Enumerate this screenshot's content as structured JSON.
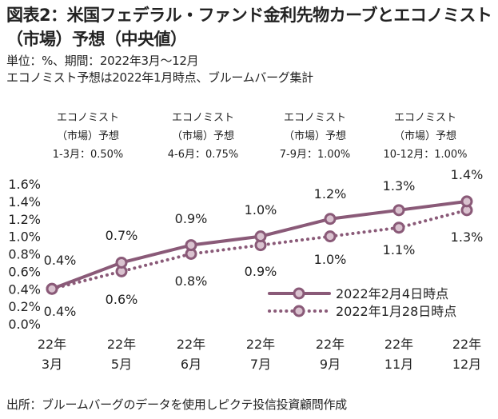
{
  "title": "図表2：米国フェデラル・ファンド金利先物カーブとエコノミスト（市場）予想（中央値）",
  "subtitle_1": "単位：%、期間：2022年3月～12月",
  "subtitle_2": "エコノミスト予想は2022年1月時点、ブルームバーグ集計",
  "source": "出所：ブルームバーグのデータを使用しピクテ投信投資顧問作成",
  "colors": {
    "series_color": "#8a5a78",
    "marker_fill": "#d9c2cf",
    "text": "#222222"
  },
  "chart_data": {
    "type": "line",
    "categories": [
      "22年\n3月",
      "22年\n5月",
      "22年\n6月",
      "22年\n7月",
      "22年\n9月",
      "22年\n11月",
      "22年\n12月"
    ],
    "series": [
      {
        "name": "2022年2月4日時点",
        "style": "solid",
        "values": [
          0.4,
          0.7,
          0.9,
          1.0,
          1.2,
          1.3,
          1.4
        ]
      },
      {
        "name": "2022年1月28日時点",
        "style": "dotted",
        "values": [
          0.4,
          0.6,
          0.8,
          0.9,
          1.0,
          1.1,
          1.3
        ]
      }
    ],
    "data_labels": {
      "solid": [
        "0.4%",
        "0.7%",
        "0.9%",
        "1.0%",
        "1.2%",
        "1.3%",
        "1.4%"
      ],
      "dotted": [
        "0.4%",
        "0.6%",
        "0.8%",
        "0.9%",
        "1.0%",
        "1.1%",
        "1.3%"
      ]
    },
    "y_ticks": [
      "0.0%",
      "0.2%",
      "0.4%",
      "0.6%",
      "0.8%",
      "1.0%",
      "1.2%",
      "1.4%",
      "1.6%"
    ],
    "ylim": [
      0,
      1.6
    ],
    "grid": false,
    "legend_position": "bottom-right",
    "annotations": [
      {
        "line1": "エコノミスト",
        "line2": "（市場）予想",
        "line3": "1-3月：0.50%"
      },
      {
        "line1": "エコノミスト",
        "line2": "（市場）予想",
        "line3": "4-6月：0.75%"
      },
      {
        "line1": "エコノミスト",
        "line2": "（市場）予想",
        "line3": "7-9月：1.00%"
      },
      {
        "line1": "エコノミスト",
        "line2": "（市場）予想",
        "line3": "10-12月：1.00%"
      }
    ]
  }
}
